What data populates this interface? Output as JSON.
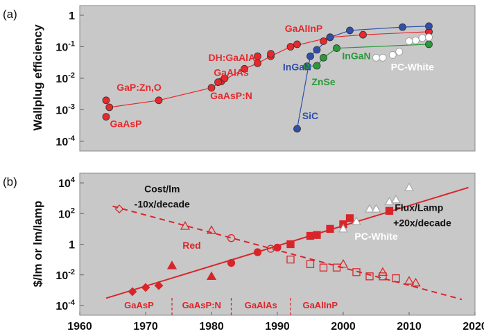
{
  "chart_data": [
    {
      "panel": "(a)",
      "type": "scatter",
      "ylabel": "Wallplug efficiency",
      "y_scale": "log",
      "ylim": [
        0.0001,
        1
      ],
      "xlim": [
        1960,
        2020
      ],
      "grid": false,
      "background": "#c8c8c8",
      "y_tick_labels": [
        {
          "v": 1,
          "base": "1",
          "exp": ""
        },
        {
          "v": 0.1,
          "base": "10",
          "exp": "-1"
        },
        {
          "v": 0.01,
          "base": "10",
          "exp": "-2"
        },
        {
          "v": 0.001,
          "base": "10",
          "exp": "-3"
        },
        {
          "v": 0.0001,
          "base": "10",
          "exp": "-4"
        }
      ],
      "series": [
        {
          "name": "",
          "color": "#e8282b",
          "line": true,
          "points": [
            [
              1964.5,
              0.0012
            ],
            [
              1972,
              0.002
            ],
            [
              1980,
              0.005
            ],
            [
              1981.5,
              0.008
            ],
            [
              1985,
              0.02
            ],
            [
              1987,
              0.03
            ],
            [
              1989,
              0.05
            ],
            [
              1992,
              0.1
            ],
            [
              1998,
              0.2
            ],
            [
              2003,
              0.24
            ],
            [
              2013,
              0.3
            ]
          ]
        },
        {
          "name": "",
          "color": "#e8282b",
          "line": false,
          "points": [
            [
              1964,
              0.002
            ],
            [
              1964,
              0.0006
            ],
            [
              1981,
              0.0075
            ],
            [
              1982,
              0.01
            ],
            [
              1987,
              0.05
            ],
            [
              1989,
              0.06
            ],
            [
              1993,
              0.12
            ],
            [
              1997,
              0.15
            ],
            [
              1998,
              0.2
            ],
            [
              2013,
              0.3
            ]
          ]
        },
        {
          "name": "",
          "color": "#2f4fa8",
          "line": true,
          "points": [
            [
              1993,
              0.00025
            ],
            [
              1995,
              0.05
            ],
            [
              1996,
              0.08
            ],
            [
              1998,
              0.2
            ],
            [
              2001,
              0.33
            ],
            [
              2009,
              0.42
            ],
            [
              2013,
              0.45
            ]
          ]
        },
        {
          "name": "",
          "color": "#2a9a3a",
          "line": true,
          "points": [
            [
              1994.5,
              0.024
            ],
            [
              1996,
              0.025
            ],
            [
              1997,
              0.045
            ],
            [
              1999,
              0.09
            ],
            [
              2013,
              0.12
            ]
          ]
        },
        {
          "name": "",
          "color": "#ffffff",
          "line": false,
          "points": [
            [
              2005,
              0.045
            ],
            [
              2006,
              0.045
            ],
            [
              2007.5,
              0.055
            ],
            [
              2008.5,
              0.07
            ],
            [
              2010,
              0.15
            ],
            [
              2011,
              0.16
            ],
            [
              2012,
              0.19
            ],
            [
              2013,
              0.2
            ]
          ]
        }
      ],
      "annotations": [
        {
          "text": "GaAlInP",
          "x": 1994,
          "y": 0.3,
          "color": "#e8282b"
        },
        {
          "text": "DH:GaAlAs",
          "x": 1983.5,
          "y": 0.035,
          "color": "#e8282b"
        },
        {
          "text": "GaAlAs",
          "x": 1983,
          "y": 0.012,
          "color": "#e8282b"
        },
        {
          "text": "GaAsP:N",
          "x": 1983,
          "y": 0.0022,
          "color": "#e8282b"
        },
        {
          "text": "GaP:Zn,O",
          "x": 1969,
          "y": 0.004,
          "color": "#e8282b"
        },
        {
          "text": "GaAsP",
          "x": 1967,
          "y": 0.00028,
          "color": "#e8282b"
        },
        {
          "text": "InGaN",
          "x": 1993,
          "y": 0.018,
          "color": "#2f4fa8"
        },
        {
          "text": "InGaN",
          "x": 2002,
          "y": 0.04,
          "color": "#2a9a3a"
        },
        {
          "text": "ZnSe",
          "x": 1997,
          "y": 0.006,
          "color": "#2a9a3a"
        },
        {
          "text": "SiC",
          "x": 1995,
          "y": 0.0005,
          "color": "#2f4fa8"
        },
        {
          "text": "PC-White",
          "x": 2010.5,
          "y": 0.018,
          "color": "#ffffff"
        }
      ]
    },
    {
      "panel": "(b)",
      "type": "scatter",
      "ylabel": "$/lm or lm/lamp",
      "y_scale": "log",
      "ylim": [
        0.0001,
        10000
      ],
      "xlim": [
        1960,
        2020
      ],
      "grid": false,
      "background": "#c8c8c8",
      "x_ticks": [
        1960,
        1970,
        1980,
        1990,
        2000,
        2010,
        2020
      ],
      "y_tick_labels": [
        {
          "v": 10000,
          "base": "10",
          "exp": "4"
        },
        {
          "v": 100,
          "base": "10",
          "exp": "2"
        },
        {
          "v": 1,
          "base": "1",
          "exp": ""
        },
        {
          "v": 0.01,
          "base": "10",
          "exp": "-2"
        },
        {
          "v": 0.0001,
          "base": "10",
          "exp": "-4"
        }
      ],
      "trend_lines": [
        {
          "name": "Flux/Lamp",
          "color": "#d9252a",
          "dash": false,
          "from": [
            1964,
            0.0003
          ],
          "to": [
            2019,
            5000
          ]
        },
        {
          "name": "Cost/lm",
          "color": "#d9252a",
          "dash": true,
          "from": [
            1965,
            300
          ],
          "to": [
            2018,
            0.00025
          ]
        }
      ],
      "series": [
        {
          "name": "",
          "color": "#d9252a",
          "marker": "diamond",
          "filled": true,
          "points": [
            [
              1968,
              0.0008
            ],
            [
              1970,
              0.0015
            ],
            [
              1972,
              0.002
            ]
          ]
        },
        {
          "name": "",
          "color": "#d9252a",
          "marker": "triangle",
          "filled": true,
          "points": [
            [
              1974,
              0.04
            ],
            [
              1980,
              0.008
            ]
          ]
        },
        {
          "name": "",
          "color": "#d9252a",
          "marker": "circle",
          "filled": true,
          "points": [
            [
              1983,
              0.06
            ],
            [
              1987,
              0.3
            ],
            [
              1990,
              0.6
            ]
          ]
        },
        {
          "name": "",
          "color": "#d9252a",
          "marker": "square",
          "filled": true,
          "points": [
            [
              1992,
              1
            ],
            [
              1995,
              3.5
            ],
            [
              1996,
              4
            ],
            [
              1998,
              10
            ],
            [
              2000,
              20
            ],
            [
              2001,
              50
            ],
            [
              2007,
              150
            ]
          ]
        },
        {
          "name": "",
          "color": "#ffffff",
          "marker": "triangle",
          "filled": true,
          "points": [
            [
              2000,
              10
            ],
            [
              2002,
              30
            ],
            [
              2004,
              200
            ],
            [
              2005,
              200
            ],
            [
              2007,
              600
            ],
            [
              2008,
              800
            ],
            [
              2010,
              5000
            ]
          ]
        },
        {
          "name": "",
          "color": "#d9252a",
          "marker": "diamond",
          "filled": false,
          "points": [
            [
              1966,
              200
            ]
          ]
        },
        {
          "name": "",
          "color": "#d9252a",
          "marker": "triangle",
          "filled": false,
          "points": [
            [
              1976,
              15
            ],
            [
              1980,
              8
            ],
            [
              2000,
              0.05
            ],
            [
              2006,
              0.015
            ],
            [
              2010,
              0.004
            ],
            [
              2011,
              0.003
            ]
          ]
        },
        {
          "name": "",
          "color": "#d9252a",
          "marker": "circle",
          "filled": false,
          "points": [
            [
              1983,
              2.5
            ],
            [
              1989,
              0.5
            ]
          ]
        },
        {
          "name": "",
          "color": "#d9252a",
          "marker": "square",
          "filled": false,
          "points": [
            [
              1992,
              0.1
            ],
            [
              1995,
              0.05
            ],
            [
              1997,
              0.03
            ],
            [
              1999,
              0.03
            ],
            [
              2002,
              0.015
            ],
            [
              2004,
              0.008
            ],
            [
              2006,
              0.008
            ],
            [
              2008,
              0.006
            ]
          ]
        }
      ],
      "annotations": [
        {
          "text": "Cost/lm",
          "x": 1972.5,
          "y": 2500,
          "color": "#111111"
        },
        {
          "text": "-10x/decade",
          "x": 1972.5,
          "y": 250,
          "color": "#111111"
        },
        {
          "text": "Red",
          "x": 1977,
          "y": 0.5,
          "color": "#d9252a"
        },
        {
          "text": "PC-White",
          "x": 2005,
          "y": 2,
          "color": "#ffffff"
        },
        {
          "text": "Flux/Lamp",
          "x": 2011.5,
          "y": 150,
          "color": "#111111"
        },
        {
          "text": "+20x/decade",
          "x": 2012,
          "y": 15,
          "color": "#111111"
        }
      ],
      "eras": [
        {
          "label": "GaAsP",
          "from": 1964,
          "to": 1974
        },
        {
          "label": "GaAsP:N",
          "from": 1974,
          "to": 1983
        },
        {
          "label": "GaAlAs",
          "from": 1983,
          "to": 1992
        },
        {
          "label": "GaAlInP",
          "from": 1992,
          "to": 2001
        }
      ]
    }
  ]
}
